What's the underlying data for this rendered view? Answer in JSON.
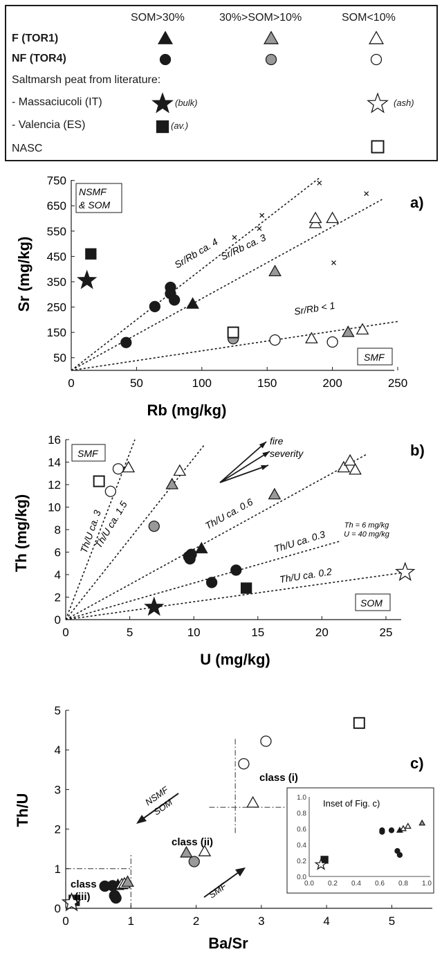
{
  "legend": {
    "col_headers": [
      "SOM>30%",
      "30%>SOM>10%",
      "SOM<10%"
    ],
    "row_f": "F (TOR1)",
    "row_nf": "NF (TOR4)",
    "saltmarsh_title": "Saltmarsh peat from literature:",
    "massaciucoli": "- Massaciucoli (IT)",
    "massaciucoli_bulk": "(bulk)",
    "massaciucoli_ash": "(ash)",
    "valencia": "- Valencia (ES)",
    "valencia_av": "(av.)",
    "nasc": "NASC"
  },
  "chart_data": [
    {
      "type": "scatter",
      "panel": "a)",
      "xlabel": "Rb (mg/kg)",
      "ylabel": "Sr (mg/kg)",
      "xlim": [
        0,
        250
      ],
      "ylim": [
        0,
        760
      ],
      "xticks": [
        0,
        50,
        100,
        150,
        200,
        250
      ],
      "yticks": [
        50,
        150,
        250,
        350,
        450,
        550,
        650,
        750
      ],
      "box_labels": [
        "NSMF & SOM",
        "SMF"
      ],
      "lines": [
        {
          "label": "Sr/Rb ca. 4",
          "x2": 190,
          "y2": 760
        },
        {
          "label": "Sr/Rb ca. 3",
          "x2": 238,
          "y2": 675
        },
        {
          "label": "Sr/Rb < 1",
          "x2": 250,
          "y2": 193
        }
      ],
      "points": [
        {
          "x": 42,
          "y": 110,
          "marker": "circle",
          "fill": "#1a1a1a"
        },
        {
          "x": 64,
          "y": 252,
          "marker": "circle",
          "fill": "#1a1a1a"
        },
        {
          "x": 76,
          "y": 328,
          "marker": "circle",
          "fill": "#1a1a1a"
        },
        {
          "x": 76,
          "y": 303,
          "marker": "circle",
          "fill": "#1a1a1a"
        },
        {
          "x": 79,
          "y": 278,
          "marker": "circle",
          "fill": "#1a1a1a"
        },
        {
          "x": 93,
          "y": 262,
          "marker": "triangle",
          "fill": "#1a1a1a"
        },
        {
          "x": 124,
          "y": 125,
          "marker": "circle",
          "fill": "#999999"
        },
        {
          "x": 124,
          "y": 150,
          "marker": "square",
          "fill": "#ffffff"
        },
        {
          "x": 156,
          "y": 120,
          "marker": "circle",
          "fill": "#ffffff"
        },
        {
          "x": 200,
          "y": 112,
          "marker": "circle",
          "fill": "#ffffff"
        },
        {
          "x": 184,
          "y": 125,
          "marker": "triangle",
          "fill": "#ffffff"
        },
        {
          "x": 212,
          "y": 150,
          "marker": "triangle",
          "fill": "#999999"
        },
        {
          "x": 223,
          "y": 160,
          "marker": "triangle",
          "fill": "#ffffff"
        },
        {
          "x": 156,
          "y": 390,
          "marker": "triangle",
          "fill": "#999999"
        },
        {
          "x": 187,
          "y": 580,
          "marker": "triangle",
          "fill": "#ffffff"
        },
        {
          "x": 187,
          "y": 600,
          "marker": "triangle",
          "fill": "#ffffff"
        },
        {
          "x": 200,
          "y": 600,
          "marker": "triangle",
          "fill": "#ffffff"
        },
        {
          "x": 12,
          "y": 355,
          "marker": "star",
          "fill": "#1a1a1a"
        },
        {
          "x": 15,
          "y": 460,
          "marker": "square",
          "fill": "#1a1a1a"
        },
        {
          "x": 125,
          "y": 525,
          "marker": "x",
          "fill": "#1a1a1a"
        },
        {
          "x": 144,
          "y": 560,
          "marker": "x",
          "fill": "#1a1a1a"
        },
        {
          "x": 146,
          "y": 612,
          "marker": "x",
          "fill": "#1a1a1a"
        },
        {
          "x": 190,
          "y": 740,
          "marker": "x",
          "fill": "#1a1a1a"
        },
        {
          "x": 201,
          "y": 425,
          "marker": "x",
          "fill": "#1a1a1a"
        },
        {
          "x": 226,
          "y": 698,
          "marker": "x",
          "fill": "#1a1a1a"
        }
      ]
    },
    {
      "type": "scatter",
      "panel": "b)",
      "xlabel": "U (mg/kg)",
      "ylabel": "Th (mg/kg)",
      "xlim": [
        0,
        27
      ],
      "ylim": [
        0,
        16
      ],
      "xticks": [
        0,
        5,
        10,
        15,
        20,
        25
      ],
      "yticks": [
        0,
        2,
        4,
        6,
        8,
        10,
        12,
        14,
        16
      ],
      "box_labels": [
        "SMF",
        "SOM"
      ],
      "arrow_label": "fire severity",
      "star_note": [
        "Th = 6 mg/kg",
        "U = 40 mg/kg"
      ],
      "lines": [
        {
          "label": "Th/U ca. 3",
          "x2": 5.4,
          "y2": 16
        },
        {
          "label": "Th/U ca. 1.5",
          "x2": 10.8,
          "y2": 15.5
        },
        {
          "label": "Th/U ca. 0.6",
          "x2": 23.5,
          "y2": 14.7
        },
        {
          "label": "Th/U ca. 0.3",
          "x2": 21.5,
          "y2": 7
        },
        {
          "label": "Th/U ca. 0.2",
          "x2": 26.5,
          "y2": 4.2
        }
      ],
      "points": [
        {
          "x": 4.1,
          "y": 13.4,
          "marker": "circle",
          "fill": "#ffffff"
        },
        {
          "x": 3.5,
          "y": 11.4,
          "marker": "circle",
          "fill": "#ffffff"
        },
        {
          "x": 2.6,
          "y": 12.3,
          "marker": "square",
          "fill": "#ffffff"
        },
        {
          "x": 4.9,
          "y": 13.5,
          "marker": "triangle",
          "fill": "#ffffff"
        },
        {
          "x": 8.9,
          "y": 13.2,
          "marker": "triangle",
          "fill": "#ffffff"
        },
        {
          "x": 8.3,
          "y": 12.0,
          "marker": "triangle",
          "fill": "#999999"
        },
        {
          "x": 6.9,
          "y": 8.3,
          "marker": "circle",
          "fill": "#999999"
        },
        {
          "x": 9.6,
          "y": 5.6,
          "marker": "circle",
          "fill": "#1a1a1a"
        },
        {
          "x": 9.8,
          "y": 5.8,
          "marker": "circle",
          "fill": "#1a1a1a"
        },
        {
          "x": 9.7,
          "y": 5.4,
          "marker": "circle",
          "fill": "#1a1a1a"
        },
        {
          "x": 10.6,
          "y": 6.3,
          "marker": "triangle",
          "fill": "#1a1a1a"
        },
        {
          "x": 11.4,
          "y": 3.3,
          "marker": "circle",
          "fill": "#1a1a1a"
        },
        {
          "x": 13.3,
          "y": 4.4,
          "marker": "circle",
          "fill": "#1a1a1a"
        },
        {
          "x": 14.1,
          "y": 2.8,
          "marker": "square",
          "fill": "#1a1a1a"
        },
        {
          "x": 16.3,
          "y": 11.1,
          "marker": "triangle",
          "fill": "#999999"
        },
        {
          "x": 21.7,
          "y": 13.5,
          "marker": "triangle",
          "fill": "#ffffff"
        },
        {
          "x": 22.2,
          "y": 14.1,
          "marker": "triangle",
          "fill": "#ffffff"
        },
        {
          "x": 22.6,
          "y": 13.3,
          "marker": "triangle",
          "fill": "#ffffff"
        },
        {
          "x": 6.9,
          "y": 1.1,
          "marker": "star",
          "fill": "#1a1a1a"
        },
        {
          "x": 26.5,
          "y": 4.2,
          "marker": "star",
          "fill": "#ffffff"
        }
      ]
    },
    {
      "type": "scatter",
      "panel": "c)",
      "xlabel": "Ba/Sr",
      "ylabel": "Th/U",
      "xlim": [
        0,
        5.6
      ],
      "ylim": [
        0,
        5
      ],
      "xticks": [
        0,
        1,
        2,
        3,
        4,
        5
      ],
      "yticks": [
        0,
        1,
        2,
        3,
        4,
        5
      ],
      "class_labels": [
        "class (i)",
        "class (ii)",
        "class",
        "(iii)"
      ],
      "arrow_top": [
        "NSMF",
        "SOM"
      ],
      "arrow_bottom": "SMF",
      "points": [
        {
          "x": 4.5,
          "y": 4.68,
          "marker": "square",
          "fill": "#ffffff"
        },
        {
          "x": 3.07,
          "y": 4.22,
          "marker": "circle",
          "fill": "#ffffff"
        },
        {
          "x": 2.73,
          "y": 3.65,
          "marker": "circle",
          "fill": "#ffffff"
        },
        {
          "x": 2.87,
          "y": 2.66,
          "marker": "triangle",
          "fill": "#ffffff"
        },
        {
          "x": 1.85,
          "y": 1.4,
          "marker": "triangle",
          "fill": "#999999"
        },
        {
          "x": 2.13,
          "y": 1.43,
          "marker": "triangle",
          "fill": "#ffffff"
        },
        {
          "x": 1.97,
          "y": 1.18,
          "marker": "circle",
          "fill": "#999999"
        },
        {
          "x": 0.6,
          "y": 0.56,
          "marker": "circle",
          "fill": "#1a1a1a"
        },
        {
          "x": 0.72,
          "y": 0.57,
          "marker": "circle",
          "fill": "#1a1a1a"
        },
        {
          "x": 0.75,
          "y": 0.32,
          "marker": "circle",
          "fill": "#1a1a1a"
        },
        {
          "x": 0.77,
          "y": 0.26,
          "marker": "circle",
          "fill": "#1a1a1a"
        },
        {
          "x": 0.8,
          "y": 0.58,
          "marker": "triangle",
          "fill": "#1a1a1a"
        },
        {
          "x": 0.86,
          "y": 0.6,
          "marker": "triangle",
          "fill": "#ffffff"
        },
        {
          "x": 0.9,
          "y": 0.62,
          "marker": "triangle",
          "fill": "#ffffff"
        },
        {
          "x": 0.95,
          "y": 0.66,
          "marker": "triangle",
          "fill": "#999999"
        },
        {
          "x": 0.13,
          "y": 0.2,
          "marker": "square",
          "fill": "#1a1a1a"
        },
        {
          "x": 0.09,
          "y": 0.14,
          "marker": "star",
          "fill": "#ffffff"
        }
      ],
      "inset": {
        "title": "Inset of Fig. c)",
        "xlim": [
          0,
          1.0
        ],
        "ylim": [
          0,
          1.0
        ],
        "xticks": [
          "0.0",
          "0.2",
          "0.4",
          "0.6",
          "0.8",
          "1.0"
        ],
        "yticks": [
          "0.0",
          "0.2",
          "0.4",
          "0.6",
          "0.8",
          "1.0"
        ],
        "points": [
          {
            "x": 0.62,
            "y": 0.56,
            "marker": "circle",
            "fill": "#1a1a1a"
          },
          {
            "x": 0.62,
            "y": 0.58,
            "marker": "circle",
            "fill": "#1a1a1a"
          },
          {
            "x": 0.7,
            "y": 0.58,
            "marker": "circle",
            "fill": "#1a1a1a"
          },
          {
            "x": 0.75,
            "y": 0.32,
            "marker": "circle",
            "fill": "#1a1a1a"
          },
          {
            "x": 0.77,
            "y": 0.27,
            "marker": "circle",
            "fill": "#1a1a1a"
          },
          {
            "x": 0.77,
            "y": 0.58,
            "marker": "triangle",
            "fill": "#1a1a1a"
          },
          {
            "x": 0.8,
            "y": 0.6,
            "marker": "triangle",
            "fill": "#ffffff"
          },
          {
            "x": 0.84,
            "y": 0.63,
            "marker": "triangle",
            "fill": "#ffffff"
          },
          {
            "x": 0.96,
            "y": 0.67,
            "marker": "triangle",
            "fill": "#999999"
          },
          {
            "x": 0.13,
            "y": 0.21,
            "marker": "square",
            "fill": "#1a1a1a"
          },
          {
            "x": 0.1,
            "y": 0.15,
            "marker": "star",
            "fill": "#ffffff"
          }
        ]
      }
    }
  ]
}
